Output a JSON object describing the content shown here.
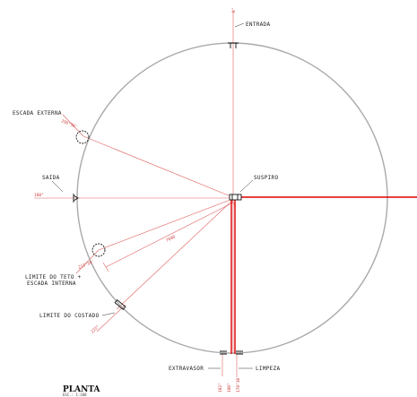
{
  "labels": {
    "entrada": "ENTRADA",
    "escada_externa": "ESCADA EXTERNA",
    "saida": "SAIDA",
    "suspiro": "SUSPIRO",
    "limite_teto": "LIMITE DO TETO +",
    "escada_interna": "ESCADA INTERNA",
    "limite_costado": "LIMITE DO COSTADO",
    "extravasor": "EXTRAVASOR",
    "limpeza": "LIMPEZA"
  },
  "angles": {
    "top": "0°",
    "left": "180°",
    "escada_externa": "296°30'",
    "limite_teto": "213°30'",
    "limite_costado": "225°",
    "bottom_1": "182°",
    "bottom_2": "180°",
    "bottom_3": "178°30'"
  },
  "dimension": "7000",
  "title": "PLANTA",
  "subtitle": "ESC.: 1:100",
  "colors": {
    "circle": "#aaaaaa",
    "axis": "#e05050",
    "pipe": "#dd0000",
    "ink": "#111111"
  }
}
